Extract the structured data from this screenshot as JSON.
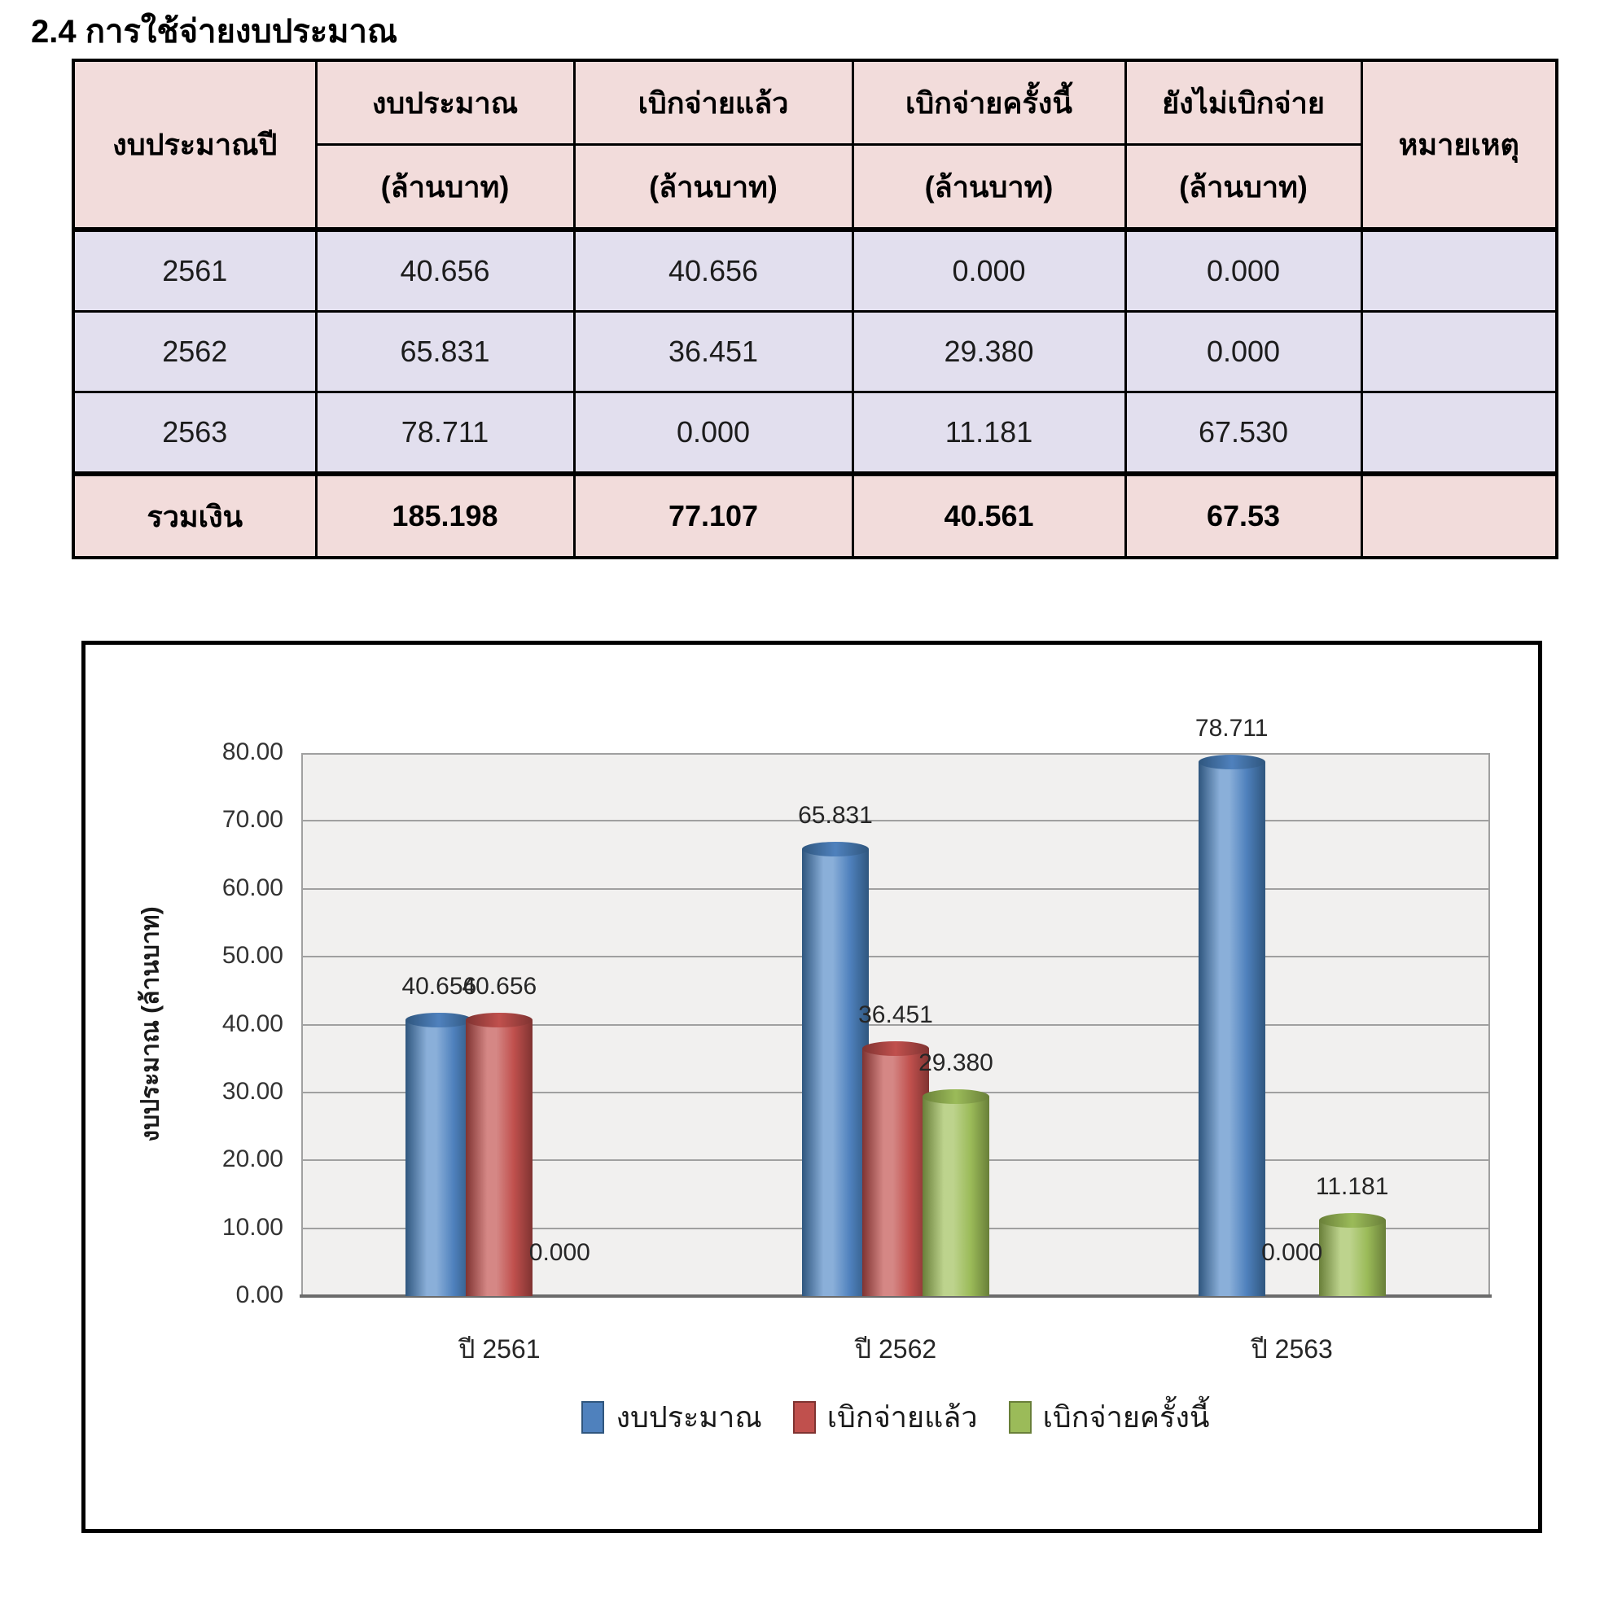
{
  "page": {
    "title": "2.4  การใช้จ่ายงบประมาณ"
  },
  "table": {
    "headers": {
      "year": "งบประมาณปี",
      "budget": "งบประมาณ",
      "disbursed": "เบิกจ่ายแล้ว",
      "disbursed_now": "เบิกจ่ายครั้งนี้",
      "not_disbursed": "ยังไม่เบิกจ่าย",
      "remark": "หมายเหตุ",
      "unit": "(ล้านบาท)"
    },
    "rows": [
      {
        "year": "2561",
        "budget": "40.656",
        "disbursed": "40.656",
        "disbursed_now": "0.000",
        "not_disbursed": "0.000",
        "remark": ""
      },
      {
        "year": "2562",
        "budget": "65.831",
        "disbursed": "36.451",
        "disbursed_now": "29.380",
        "not_disbursed": "0.000",
        "remark": ""
      },
      {
        "year": "2563",
        "budget": "78.711",
        "disbursed": "0.000",
        "disbursed_now": "11.181",
        "not_disbursed": "67.530",
        "remark": ""
      }
    ],
    "total": {
      "label": "รวมเงิน",
      "budget": "185.198",
      "disbursed": "77.107",
      "disbursed_now": "40.561",
      "not_disbursed": "67.53",
      "remark": ""
    }
  },
  "chart_data": {
    "type": "bar",
    "categories": [
      "ปี 2561",
      "ปี 2562",
      "ปี 2563"
    ],
    "series": [
      {
        "name": "งบประมาณ",
        "color": "#4f81bd",
        "light": "#8aafd9",
        "dark": "#2f567e",
        "values": [
          40.656,
          65.831,
          78.711
        ]
      },
      {
        "name": "เบิกจ่ายแล้ว",
        "color": "#c0504d",
        "light": "#d58785",
        "dark": "#7f3331",
        "values": [
          40.656,
          36.451,
          0.0
        ]
      },
      {
        "name": "เบิกจ่ายครั้งนี้",
        "color": "#9bbb59",
        "light": "#bdd38d",
        "dark": "#697f39",
        "values": [
          0.0,
          29.38,
          11.181
        ]
      }
    ],
    "title": "",
    "xlabel": "",
    "ylabel": "งบประมาณ (ล้านบาท)",
    "ylim": [
      0,
      80
    ],
    "ytick_step": 10,
    "grid": true,
    "legend_position": "bottom",
    "value_label_decimals": 3,
    "plot_background": "#f1f0ef",
    "gridline_color": "#a0a0a0"
  }
}
